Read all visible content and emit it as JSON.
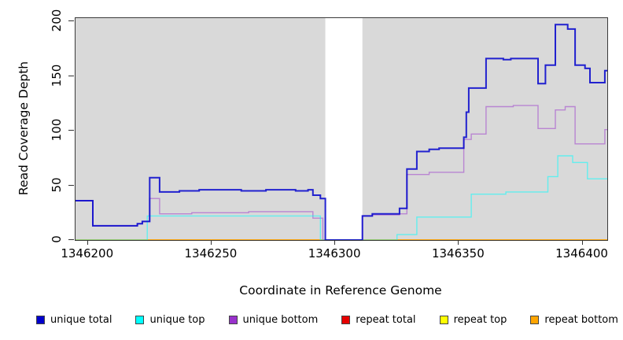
{
  "chart_data": {
    "type": "line",
    "subtype": "step",
    "title": "",
    "xlabel": "Coordinate in Reference Genome",
    "ylabel": "Read Coverage Depth",
    "xlim": [
      1346195,
      1346410
    ],
    "ylim": [
      0,
      203
    ],
    "x_ticks": [
      1346200,
      1346250,
      1346300,
      1346350,
      1346400
    ],
    "y_ticks": [
      0,
      50,
      100,
      150,
      200
    ],
    "grid": false,
    "plot_background": "#d9d9d9",
    "gap_region": {
      "x_start": 1346296,
      "x_end": 1346311,
      "color": "#ffffff"
    },
    "legend_position": "bottom",
    "series": [
      {
        "name": "unique total",
        "color": "#0000CD",
        "alpha": 0.85,
        "width": 2,
        "z": 6,
        "points": [
          [
            1346195,
            36
          ],
          [
            1346202,
            13
          ],
          [
            1346220,
            15
          ],
          [
            1346222,
            17
          ],
          [
            1346225,
            57
          ],
          [
            1346229,
            44
          ],
          [
            1346237,
            45
          ],
          [
            1346245,
            46
          ],
          [
            1346262,
            45
          ],
          [
            1346272,
            46
          ],
          [
            1346284,
            45
          ],
          [
            1346289,
            46
          ],
          [
            1346291,
            41
          ],
          [
            1346294,
            38
          ],
          [
            1346296,
            0
          ],
          [
            1346311,
            22
          ],
          [
            1346315,
            24
          ],
          [
            1346326,
            29
          ],
          [
            1346329,
            65
          ],
          [
            1346333,
            81
          ],
          [
            1346338,
            83
          ],
          [
            1346342,
            84
          ],
          [
            1346352,
            94
          ],
          [
            1346353,
            117
          ],
          [
            1346354,
            139
          ],
          [
            1346361,
            166
          ],
          [
            1346368,
            165
          ],
          [
            1346371,
            166
          ],
          [
            1346382,
            143
          ],
          [
            1346385,
            160
          ],
          [
            1346389,
            197
          ],
          [
            1346394,
            193
          ],
          [
            1346397,
            160
          ],
          [
            1346401,
            157
          ],
          [
            1346403,
            144
          ],
          [
            1346409,
            155
          ]
        ]
      },
      {
        "name": "unique top",
        "color": "#00FFFF",
        "alpha": 0.55,
        "width": 1.4,
        "z": 5,
        "points": [
          [
            1346195,
            0
          ],
          [
            1346224,
            22
          ],
          [
            1346294,
            0
          ],
          [
            1346325,
            5
          ],
          [
            1346333,
            21
          ],
          [
            1346355,
            42
          ],
          [
            1346369,
            44
          ],
          [
            1346386,
            58
          ],
          [
            1346390,
            77
          ],
          [
            1346396,
            71
          ],
          [
            1346402,
            56
          ]
        ]
      },
      {
        "name": "unique bottom",
        "color": "#9932CC",
        "alpha": 0.5,
        "width": 1.4,
        "z": 4,
        "points": [
          [
            1346195,
            36
          ],
          [
            1346202,
            13
          ],
          [
            1346220,
            15
          ],
          [
            1346222,
            17
          ],
          [
            1346225,
            38
          ],
          [
            1346229,
            24
          ],
          [
            1346242,
            25
          ],
          [
            1346265,
            26
          ],
          [
            1346291,
            20
          ],
          [
            1346295,
            0
          ],
          [
            1346311,
            22
          ],
          [
            1346315,
            23
          ],
          [
            1346326,
            24
          ],
          [
            1346329,
            60
          ],
          [
            1346338,
            62
          ],
          [
            1346352,
            92
          ],
          [
            1346355,
            97
          ],
          [
            1346361,
            122
          ],
          [
            1346372,
            123
          ],
          [
            1346382,
            102
          ],
          [
            1346389,
            119
          ],
          [
            1346393,
            122
          ],
          [
            1346397,
            88
          ],
          [
            1346409,
            101
          ]
        ]
      },
      {
        "name": "repeat total",
        "color": "#E60000",
        "alpha": 1,
        "width": 1.3,
        "z": 1,
        "points": [
          [
            1346195,
            0
          ]
        ]
      },
      {
        "name": "repeat top",
        "color": "#FFFF00",
        "alpha": 1,
        "width": 1.3,
        "z": 2,
        "points": [
          [
            1346195,
            0
          ]
        ]
      },
      {
        "name": "repeat bottom",
        "color": "#FFA500",
        "alpha": 1,
        "width": 1.8,
        "z": 3,
        "points": [
          [
            1346195,
            0
          ]
        ]
      }
    ]
  }
}
